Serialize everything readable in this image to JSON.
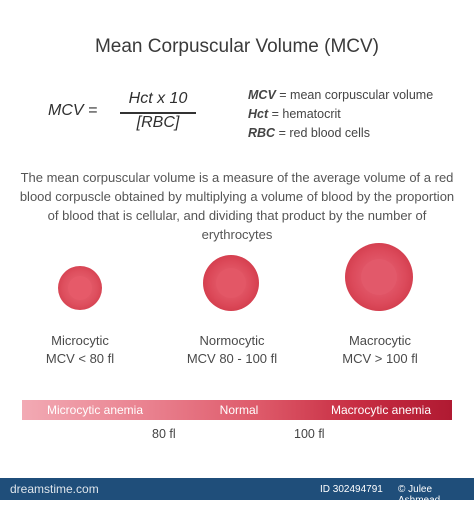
{
  "title": "Mean Corpuscular Volume (MCV)",
  "formula": {
    "lhs": "MCV =",
    "numerator": "Hct x 10",
    "denominator": "[RBC]"
  },
  "definitions": [
    {
      "abbr": "MCV",
      "text": " = mean corpuscular volume"
    },
    {
      "abbr": "Hct",
      "text": " = hematocrit"
    },
    {
      "abbr": "RBC",
      "text": " = red blood cells"
    }
  ],
  "description": "The mean corpuscular volume is a measure of the average volume of a red blood corpuscle obtained by multiplying a volume of blood by the proportion of blood that is cellular, and dividing that product by the number of erythrocytes",
  "cells": [
    {
      "name": "Microcytic",
      "range": "MCV < 80 fl"
    },
    {
      "name": "Normocytic",
      "range": "MCV 80 - 100 fl"
    },
    {
      "name": "Macrocytic",
      "range": "MCV > 100 fl"
    }
  ],
  "scale": {
    "segments": [
      "Microcytic anemia",
      "Normal",
      "Macrocytic anemia"
    ],
    "ticks": [
      "80 fl",
      "100 fl"
    ]
  },
  "footer": {
    "brand": "dreamstime.com",
    "id": "ID 302494791",
    "author": "© Julee Ashmead"
  },
  "colors": {
    "cell_red": "#de4f5e",
    "footer_blue": "#1f4e7a"
  }
}
